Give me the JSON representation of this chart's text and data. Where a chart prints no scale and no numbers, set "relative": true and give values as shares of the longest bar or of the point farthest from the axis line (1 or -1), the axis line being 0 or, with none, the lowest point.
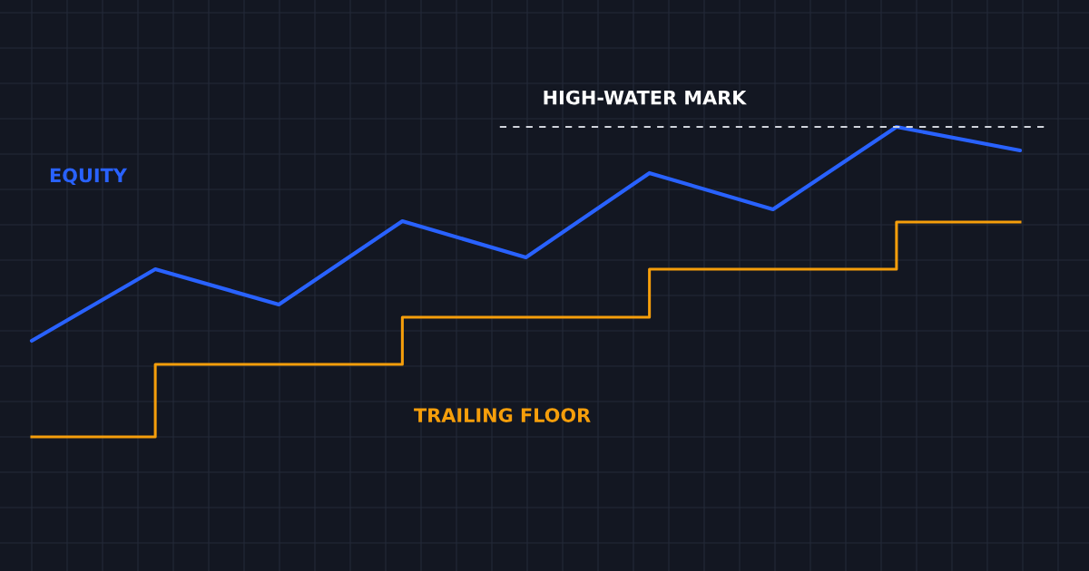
{
  "chart_data": {
    "type": "line",
    "relative": true,
    "grid": true,
    "legend": false,
    "categories": [
      null,
      null,
      null,
      null,
      null,
      null,
      null,
      null,
      null
    ],
    "series": [
      {
        "name": "EQUITY",
        "color": "#2962ff",
        "values": [
          0.31,
          0.541,
          0.427,
          0.696,
          0.579,
          0.851,
          0.734,
          1,
          0.924
        ]
      },
      {
        "name": "TRAILING FLOOR",
        "type": "step",
        "color": "#f59e0b",
        "values": [
          0,
          0.234,
          0.234,
          0.386,
          0.386,
          0.541,
          0.541,
          0.693,
          0.693
        ]
      }
    ],
    "ref_lines": [
      {
        "axis": "y",
        "value": 1,
        "label": "HIGH-WATER MARK",
        "color": "#d1d4dc",
        "line_style": "dashed"
      }
    ]
  }
}
